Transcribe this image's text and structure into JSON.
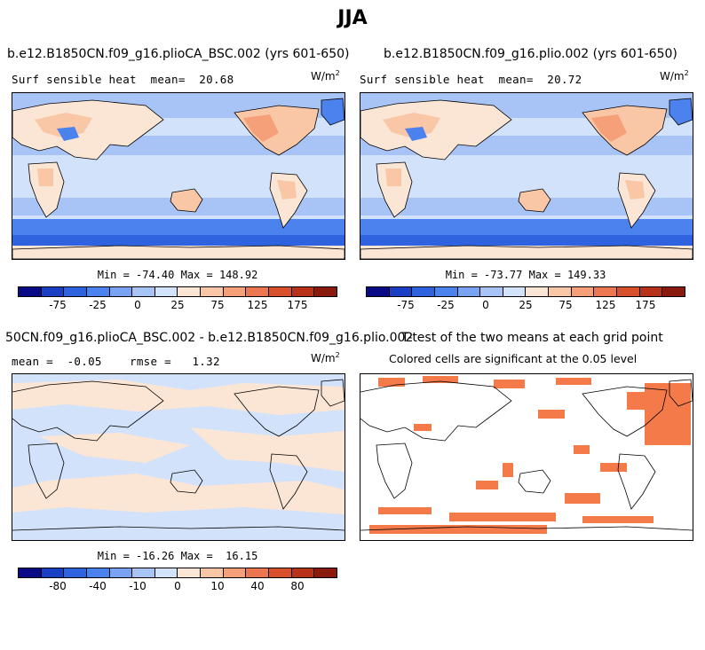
{
  "title": "JJA",
  "panels": [
    {
      "name": "b.e12.B1850CN.f09_g16.plioCA_BSC.002 (yrs 601-650)",
      "subtitle": "Surf sensible heat  mean=  20.68",
      "units": "W/m",
      "units_exp": "2",
      "stats": "Min = -74.40 Max = 148.92"
    },
    {
      "name": "b.e12.B1850CN.f09_g16.plio.002 (yrs 601-650)",
      "subtitle": "Surf sensible heat  mean=  20.72",
      "units": "W/m",
      "units_exp": "2",
      "stats": "Min = -73.77 Max = 149.33"
    },
    {
      "name": "50CN.f09_g16.plioCA_BSC.002 - b.e12.B1850CN.f09_g16.plio.002",
      "subtitle": "mean =  -0.05    rmse =   1.32",
      "units": "W/m",
      "units_exp": "2",
      "stats": "Min = -16.26 Max =  16.15"
    },
    {
      "name": "T-test of the two means at each grid point",
      "subtitle": "Colored cells are significant at the 0.05 level"
    }
  ],
  "colorbars": {
    "top_ticks": [
      "-75",
      "-25",
      "0",
      "25",
      "75",
      "125",
      "175"
    ],
    "diff_ticks": [
      "-80",
      "-40",
      "-10",
      "0",
      "10",
      "40",
      "80"
    ],
    "colors": [
      "#0a0a86",
      "#1a3fc4",
      "#2e62de",
      "#4c82ee",
      "#7aa2f2",
      "#a8c4f6",
      "#d2e2fb",
      "#fbe6d6",
      "#f9c6a6",
      "#f5a079",
      "#ec7650",
      "#d9502c",
      "#b8321a",
      "#8a1a0d"
    ]
  },
  "accent_colors": {
    "significance": "#f47a4a",
    "coast": "#000000"
  }
}
